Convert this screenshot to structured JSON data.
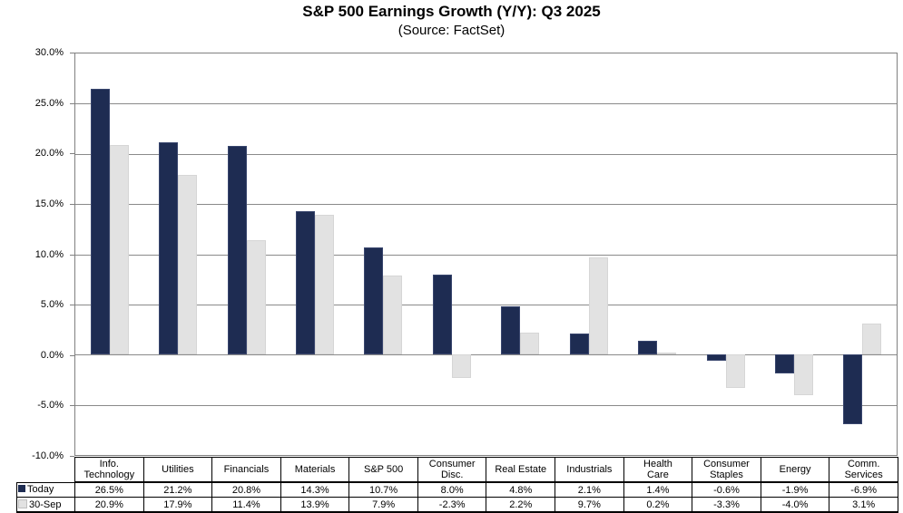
{
  "header": {
    "title": "S&P 500 Earnings Growth (Y/Y): Q3 2025",
    "subtitle": "(Source: FactSet)"
  },
  "chart_data": {
    "type": "bar",
    "title": "S&P 500 Earnings Growth (Y/Y): Q3 2025",
    "subtitle": "(Source: FactSet)",
    "categories": [
      "Info.\nTechnology",
      "Utilities",
      "Financials",
      "Materials",
      "S&P 500",
      "Consumer\nDisc.",
      "Real Estate",
      "Industrials",
      "Health\nCare",
      "Consumer\nStaples",
      "Energy",
      "Comm.\nServices"
    ],
    "series": [
      {
        "name": "Today",
        "color": "#1E2C52",
        "border_color": "#39466E",
        "values": [
          26.5,
          21.2,
          20.8,
          14.3,
          10.7,
          8.0,
          4.8,
          2.1,
          1.4,
          -0.6,
          -1.9,
          -6.9
        ]
      },
      {
        "name": "30-Sep",
        "color": "#E2E2E2",
        "border_color": "#D6D6D6",
        "values": [
          20.9,
          17.9,
          11.4,
          13.9,
          7.9,
          -2.3,
          2.2,
          9.7,
          0.2,
          -3.3,
          -4.0,
          3.1
        ]
      }
    ],
    "y_axis": {
      "min": -10,
      "max": 30,
      "step": 5,
      "tick_labels": [
        "30.0%",
        "25.0%",
        "20.0%",
        "15.0%",
        "10.0%",
        "5.0%",
        "0.0%",
        "-5.0%",
        "-10.0%"
      ]
    },
    "value_suffix": "%",
    "grid": true,
    "legend_position": "table-left",
    "colors": {
      "gridline": "#8a8a8a",
      "plot_border": "#808080",
      "table_border": "#000000",
      "text": "#000000",
      "background": "#ffffff"
    }
  }
}
